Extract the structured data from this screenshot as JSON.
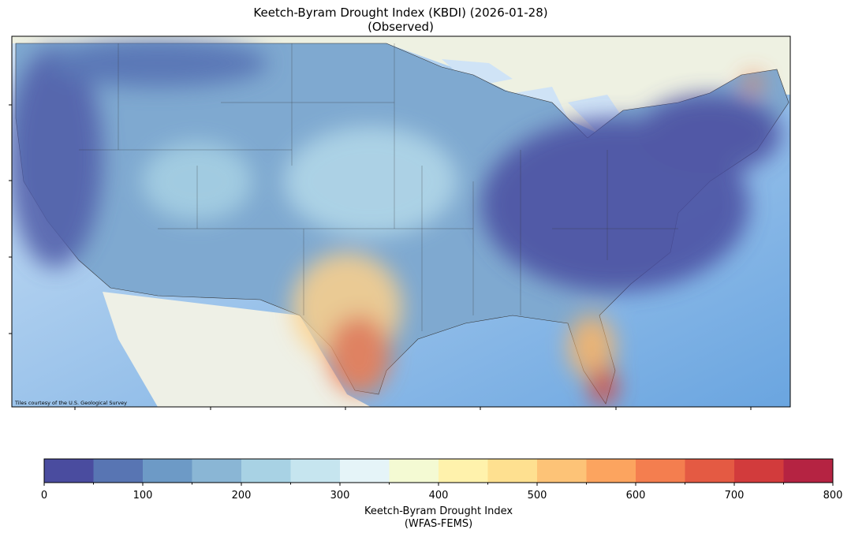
{
  "title": "Keetch-Byram Drought Index (KBDI) (2026-01-28)",
  "subtitle": "(Observed)",
  "map": {
    "attribution": "Tiles courtesy of the U.S. Geological Survey"
  },
  "colorbar": {
    "bounds": [
      0,
      50,
      100,
      150,
      200,
      250,
      300,
      350,
      400,
      450,
      500,
      550,
      600,
      650,
      700,
      750,
      800
    ],
    "colors": [
      "#4a4c9f",
      "#5875b3",
      "#6d9ac6",
      "#8ab6d5",
      "#a8d2e4",
      "#c6e5ef",
      "#e5f4f8",
      "#f4fad3",
      "#fff2ac",
      "#fee090",
      "#fdc377",
      "#fca45f",
      "#f47e4f",
      "#e45a43",
      "#d23b3c",
      "#b52342"
    ],
    "ticks": [
      0,
      100,
      200,
      300,
      400,
      500,
      600,
      700,
      800
    ],
    "label": "Keetch-Byram Drought Index",
    "sublabel": "(WFAS-FEMS)"
  }
}
